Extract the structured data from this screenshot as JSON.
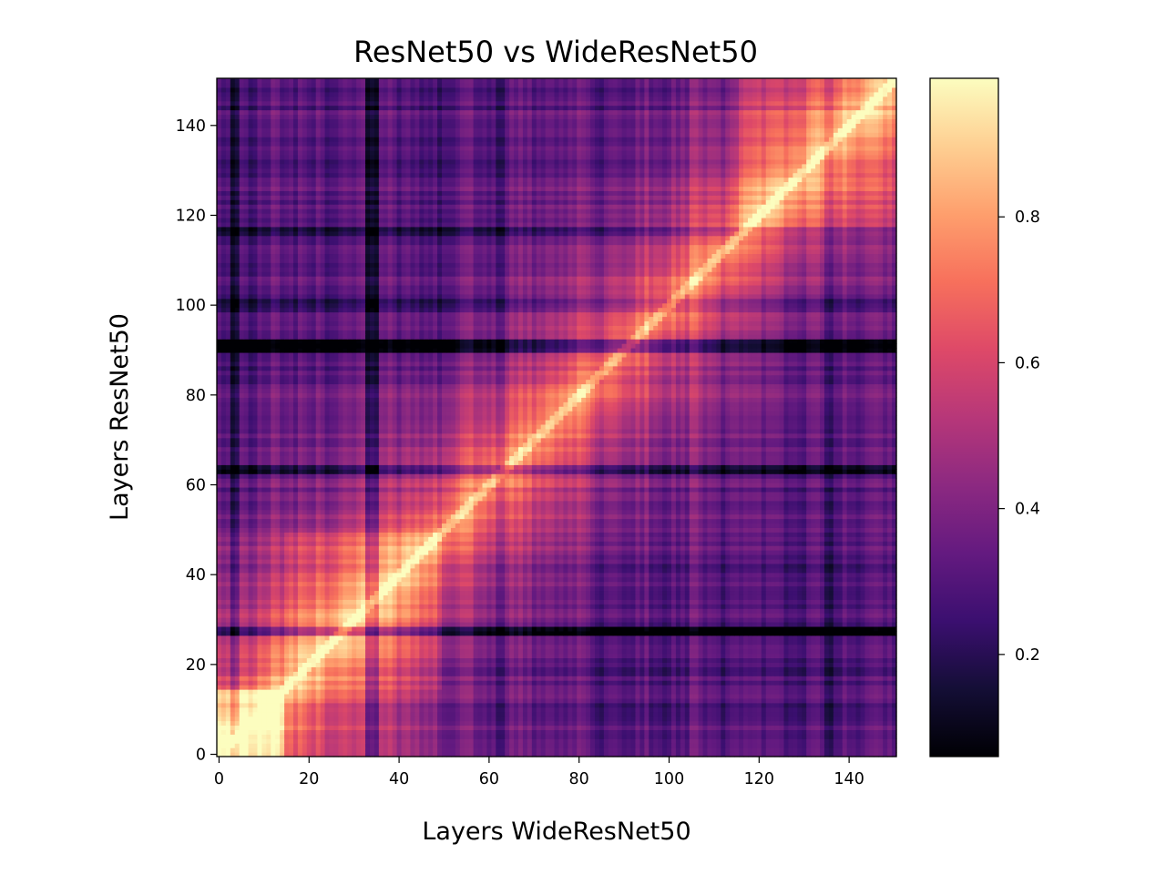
{
  "chart_data": {
    "type": "heatmap",
    "title": "ResNet50 vs WideResNet50",
    "xlabel": "Layers WideResNet50",
    "ylabel": "Layers ResNet50",
    "n_rows": 151,
    "n_cols": 151,
    "xlim": [
      0,
      151
    ],
    "ylim": [
      0,
      151
    ],
    "x_ticks": [
      0,
      20,
      40,
      60,
      80,
      100,
      120,
      140
    ],
    "y_ticks": [
      0,
      20,
      40,
      60,
      80,
      100,
      120,
      140
    ],
    "origin": "lower",
    "colormap": "magma",
    "colorbar": {
      "vmin": 0.06,
      "vmax": 0.99,
      "ticks": [
        0.2,
        0.4,
        0.6,
        0.8
      ],
      "tick_labels": [
        "0.2",
        "0.4",
        "0.6",
        "0.8"
      ]
    },
    "grid": false,
    "description_of_values": "approximate similarity matrix; bright near diagonal blocks, dark bands at layers ~28, ~64, ~91, ~116"
  }
}
